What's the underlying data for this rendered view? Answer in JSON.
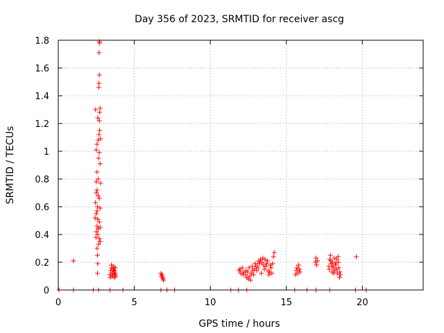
{
  "chart_data": {
    "type": "scatter",
    "title": "Day 356 of 2023, SRMTID for receiver ascg",
    "xlabel": "GPS time / hours",
    "ylabel": "SRMTID / TECUs",
    "xlim": [
      0,
      24
    ],
    "ylim": [
      0,
      1.8
    ],
    "grid": true,
    "marker": "+",
    "color": "#ff0000",
    "x_ticks": [
      0,
      5,
      10,
      15,
      20
    ],
    "x_tick_labels": [
      "0",
      "5",
      "10",
      "15",
      "20"
    ],
    "y_ticks": [
      0,
      0.2,
      0.4,
      0.6,
      0.8,
      1.0,
      1.2,
      1.4,
      1.6,
      1.8
    ],
    "y_tick_labels": [
      "0",
      "0.2",
      "0.4",
      "0.6",
      "0.8",
      "1",
      "1.2",
      "1.4",
      "1.6",
      "1.8"
    ],
    "series": [
      {
        "name": "SRMTID",
        "points": [
          [
            0.05,
            0
          ],
          [
            1.0,
            0
          ],
          [
            2.3,
            0
          ],
          [
            2.65,
            0
          ],
          [
            3.4,
            0
          ],
          [
            4.25,
            0
          ],
          [
            6.75,
            0
          ],
          [
            7.15,
            0
          ],
          [
            7.65,
            0
          ],
          [
            11.35,
            0
          ],
          [
            11.85,
            0
          ],
          [
            12.4,
            0
          ],
          [
            15.55,
            0
          ],
          [
            16.35,
            0
          ],
          [
            16.95,
            0
          ],
          [
            17.85,
            0
          ],
          [
            19.55,
            0
          ],
          [
            20.25,
            0
          ],
          [
            1.0,
            0.21
          ],
          [
            2.7,
            1.79
          ],
          [
            2.72,
            1.78
          ],
          [
            2.68,
            1.71
          ],
          [
            2.7,
            1.55
          ],
          [
            2.68,
            1.49
          ],
          [
            2.66,
            1.46
          ],
          [
            2.45,
            1.3
          ],
          [
            2.75,
            1.31
          ],
          [
            2.72,
            1.28
          ],
          [
            2.6,
            1.24
          ],
          [
            2.7,
            1.22
          ],
          [
            2.72,
            1.15
          ],
          [
            2.68,
            1.12
          ],
          [
            2.62,
            1.08
          ],
          [
            2.78,
            1.09
          ],
          [
            2.55,
            1.05
          ],
          [
            2.5,
            1.01
          ],
          [
            2.7,
            0.99
          ],
          [
            2.65,
            0.95
          ],
          [
            2.75,
            0.91
          ],
          [
            2.55,
            0.85
          ],
          [
            2.62,
            0.8
          ],
          [
            2.5,
            0.78
          ],
          [
            2.78,
            0.77
          ],
          [
            2.55,
            0.72
          ],
          [
            2.5,
            0.7
          ],
          [
            2.62,
            0.68
          ],
          [
            2.7,
            0.66
          ],
          [
            2.45,
            0.63
          ],
          [
            2.58,
            0.6
          ],
          [
            2.55,
            0.57
          ],
          [
            2.75,
            0.59
          ],
          [
            2.5,
            0.55
          ],
          [
            2.42,
            0.52
          ],
          [
            2.6,
            0.51
          ],
          [
            2.7,
            0.49
          ],
          [
            2.55,
            0.46
          ],
          [
            2.62,
            0.44
          ],
          [
            2.75,
            0.45
          ],
          [
            2.5,
            0.42
          ],
          [
            2.6,
            0.4
          ],
          [
            2.48,
            0.38
          ],
          [
            2.7,
            0.37
          ],
          [
            2.75,
            0.35
          ],
          [
            2.65,
            0.33
          ],
          [
            2.55,
            0.3
          ],
          [
            2.58,
            0.25
          ],
          [
            2.6,
            0.19
          ],
          [
            2.58,
            0.12
          ],
          [
            3.4,
            0.11
          ],
          [
            3.45,
            0.14
          ],
          [
            3.5,
            0.18
          ],
          [
            3.5,
            0.16
          ],
          [
            3.55,
            0.12
          ],
          [
            3.6,
            0.1
          ],
          [
            3.6,
            0.15
          ],
          [
            3.65,
            0.17
          ],
          [
            3.65,
            0.13
          ],
          [
            3.7,
            0.09
          ],
          [
            3.7,
            0.14
          ],
          [
            3.72,
            0.11
          ],
          [
            3.75,
            0.16
          ],
          [
            3.75,
            0.12
          ],
          [
            3.78,
            0.1
          ],
          [
            3.42,
            0.09
          ],
          [
            3.52,
            0.1
          ],
          [
            6.75,
            0.12
          ],
          [
            6.8,
            0.1
          ],
          [
            6.85,
            0.09
          ],
          [
            6.9,
            0.08
          ],
          [
            6.82,
            0.11
          ],
          [
            6.92,
            0.07
          ],
          [
            11.9,
            0.14
          ],
          [
            12.0,
            0.12
          ],
          [
            12.1,
            0.16
          ],
          [
            12.2,
            0.13
          ],
          [
            12.3,
            0.11
          ],
          [
            12.4,
            0.09
          ],
          [
            12.5,
            0.08
          ],
          [
            12.6,
            0.1
          ],
          [
            12.7,
            0.12
          ],
          [
            12.8,
            0.14
          ],
          [
            12.9,
            0.15
          ],
          [
            13.0,
            0.17
          ],
          [
            13.1,
            0.19
          ],
          [
            13.2,
            0.21
          ],
          [
            13.3,
            0.22
          ],
          [
            13.4,
            0.2
          ],
          [
            13.5,
            0.18
          ],
          [
            13.6,
            0.22
          ],
          [
            13.7,
            0.19
          ],
          [
            13.8,
            0.14
          ],
          [
            13.9,
            0.13
          ],
          [
            14.0,
            0.16
          ],
          [
            14.1,
            0.19
          ],
          [
            14.15,
            0.24
          ],
          [
            14.2,
            0.27
          ],
          [
            12.45,
            0.13
          ],
          [
            12.55,
            0.16
          ],
          [
            12.65,
            0.07
          ],
          [
            12.75,
            0.17
          ],
          [
            12.85,
            0.11
          ],
          [
            12.95,
            0.19
          ],
          [
            13.05,
            0.14
          ],
          [
            13.15,
            0.16
          ],
          [
            13.25,
            0.19
          ],
          [
            13.35,
            0.12
          ],
          [
            13.45,
            0.23
          ],
          [
            13.55,
            0.15
          ],
          [
            13.65,
            0.17
          ],
          [
            13.75,
            0.21
          ],
          [
            13.85,
            0.11
          ],
          [
            13.95,
            0.18
          ],
          [
            14.05,
            0.12
          ],
          [
            11.95,
            0.15
          ],
          [
            12.15,
            0.11
          ],
          [
            12.35,
            0.14
          ],
          [
            15.6,
            0.11
          ],
          [
            15.65,
            0.14
          ],
          [
            15.7,
            0.16
          ],
          [
            15.75,
            0.12
          ],
          [
            15.8,
            0.18
          ],
          [
            15.85,
            0.15
          ],
          [
            15.9,
            0.13
          ],
          [
            16.9,
            0.2
          ],
          [
            16.95,
            0.23
          ],
          [
            17.0,
            0.18
          ],
          [
            17.05,
            0.21
          ],
          [
            17.8,
            0.17
          ],
          [
            17.85,
            0.22
          ],
          [
            17.9,
            0.25
          ],
          [
            17.95,
            0.19
          ],
          [
            18.0,
            0.13
          ],
          [
            18.05,
            0.2
          ],
          [
            18.1,
            0.16
          ],
          [
            18.15,
            0.23
          ],
          [
            18.2,
            0.14
          ],
          [
            18.25,
            0.18
          ],
          [
            18.3,
            0.22
          ],
          [
            18.35,
            0.12
          ],
          [
            18.4,
            0.24
          ],
          [
            18.45,
            0.16
          ],
          [
            18.5,
            0.09
          ],
          [
            18.55,
            0.11
          ],
          [
            17.82,
            0.15
          ],
          [
            17.92,
            0.21
          ],
          [
            18.02,
            0.17
          ],
          [
            18.12,
            0.12
          ],
          [
            18.22,
            0.19
          ],
          [
            18.32,
            0.15
          ],
          [
            18.42,
            0.2
          ],
          [
            18.52,
            0.13
          ],
          [
            19.6,
            0.24
          ]
        ]
      }
    ]
  }
}
